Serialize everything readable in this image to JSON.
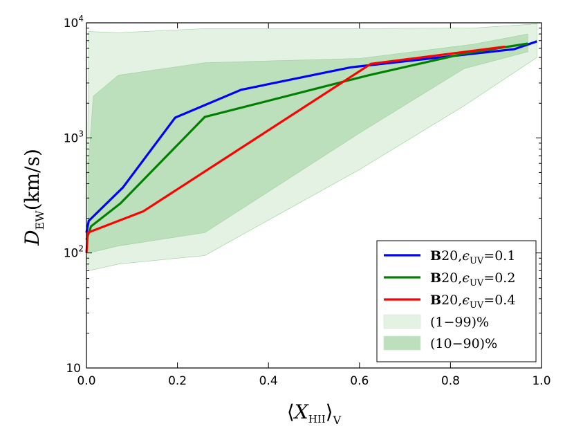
{
  "chart_data": {
    "type": "line",
    "title": "",
    "x_label": "⟨X_HII⟩_V",
    "y_label": "D_EW(km/s)",
    "xlim": [
      0.0,
      1.0
    ],
    "ylim": [
      10,
      10000
    ],
    "y_scale": "log",
    "x_ticks": [
      {
        "value": 0.0,
        "label": "0.0"
      },
      {
        "value": 0.2,
        "label": "0.2"
      },
      {
        "value": 0.4,
        "label": "0.4"
      },
      {
        "value": 0.6,
        "label": "0.6"
      },
      {
        "value": 0.8,
        "label": "0.8"
      },
      {
        "value": 1.0,
        "label": "1.0"
      }
    ],
    "y_ticks": [
      {
        "value": 10,
        "label": "10"
      },
      {
        "value": 100,
        "label": "10",
        "exp": "2"
      },
      {
        "value": 1000,
        "label": "10",
        "exp": "3"
      },
      {
        "value": 10000,
        "label": "10",
        "exp": "4"
      }
    ],
    "series": [
      {
        "name": "B20,ε_UV=0.1",
        "color": "#0000ff",
        "points": [
          [
            0.0,
            150
          ],
          [
            0.005,
            190
          ],
          [
            0.08,
            370
          ],
          [
            0.195,
            1500
          ],
          [
            0.34,
            2620
          ],
          [
            0.58,
            4100
          ],
          [
            0.94,
            5900
          ],
          [
            0.99,
            6900
          ]
        ]
      },
      {
        "name": "B20,ε_UV=0.2",
        "color": "#008000",
        "points": [
          [
            0.0,
            130
          ],
          [
            0.01,
            170
          ],
          [
            0.075,
            270
          ],
          [
            0.26,
            1520
          ],
          [
            0.62,
            3500
          ],
          [
            0.83,
            5400
          ],
          [
            0.97,
            6600
          ]
        ]
      },
      {
        "name": "B20,ε_UV=0.4",
        "color": "#ff0000",
        "points": [
          [
            0.0,
            100
          ],
          [
            0.003,
            150
          ],
          [
            0.125,
            230
          ],
          [
            0.625,
            4400
          ],
          [
            0.92,
            6200
          ]
        ]
      }
    ],
    "bands": [
      {
        "name": "(1−99)%",
        "color": "#e3f2e3",
        "upper": [
          [
            0.003,
            1100
          ],
          [
            0.005,
            8400
          ],
          [
            0.07,
            8200
          ],
          [
            0.26,
            8900
          ],
          [
            0.6,
            8900
          ],
          [
            0.85,
            9000
          ],
          [
            0.99,
            9800
          ]
        ],
        "lower": [
          [
            0.99,
            5000
          ],
          [
            0.83,
            1900
          ],
          [
            0.6,
            530
          ],
          [
            0.26,
            95
          ],
          [
            0.07,
            80
          ],
          [
            0.005,
            70
          ],
          [
            0.003,
            72
          ]
        ]
      },
      {
        "name": "(10−90)%",
        "color": "#bde0bc",
        "upper": [
          [
            0.003,
            500
          ],
          [
            0.015,
            2300
          ],
          [
            0.07,
            3500
          ],
          [
            0.26,
            4500
          ],
          [
            0.6,
            4900
          ],
          [
            0.85,
            6500
          ],
          [
            0.97,
            8000
          ]
        ],
        "lower": [
          [
            0.97,
            5600
          ],
          [
            0.83,
            4000
          ],
          [
            0.6,
            1100
          ],
          [
            0.26,
            150
          ],
          [
            0.07,
            115
          ],
          [
            0.005,
            100
          ],
          [
            0.003,
            150
          ]
        ]
      }
    ],
    "legend": {
      "position": "lower-right",
      "entries": [
        {
          "bold": "B",
          "text": "20,",
          "eps": "ϵ",
          "sub": "UV",
          "value": "=0.1",
          "color": "#0000ff",
          "kind": "line"
        },
        {
          "bold": "B",
          "text": "20,",
          "eps": "ϵ",
          "sub": "UV",
          "value": "=0.2",
          "color": "#008000",
          "kind": "line"
        },
        {
          "bold": "B",
          "text": "20,",
          "eps": "ϵ",
          "sub": "UV",
          "value": "=0.4",
          "color": "#ff0000",
          "kind": "line"
        },
        {
          "label": "(1−99)%",
          "color": "#e3f2e3",
          "kind": "patch"
        },
        {
          "label": "(10−90)%",
          "color": "#bde0bc",
          "kind": "patch"
        }
      ]
    }
  }
}
